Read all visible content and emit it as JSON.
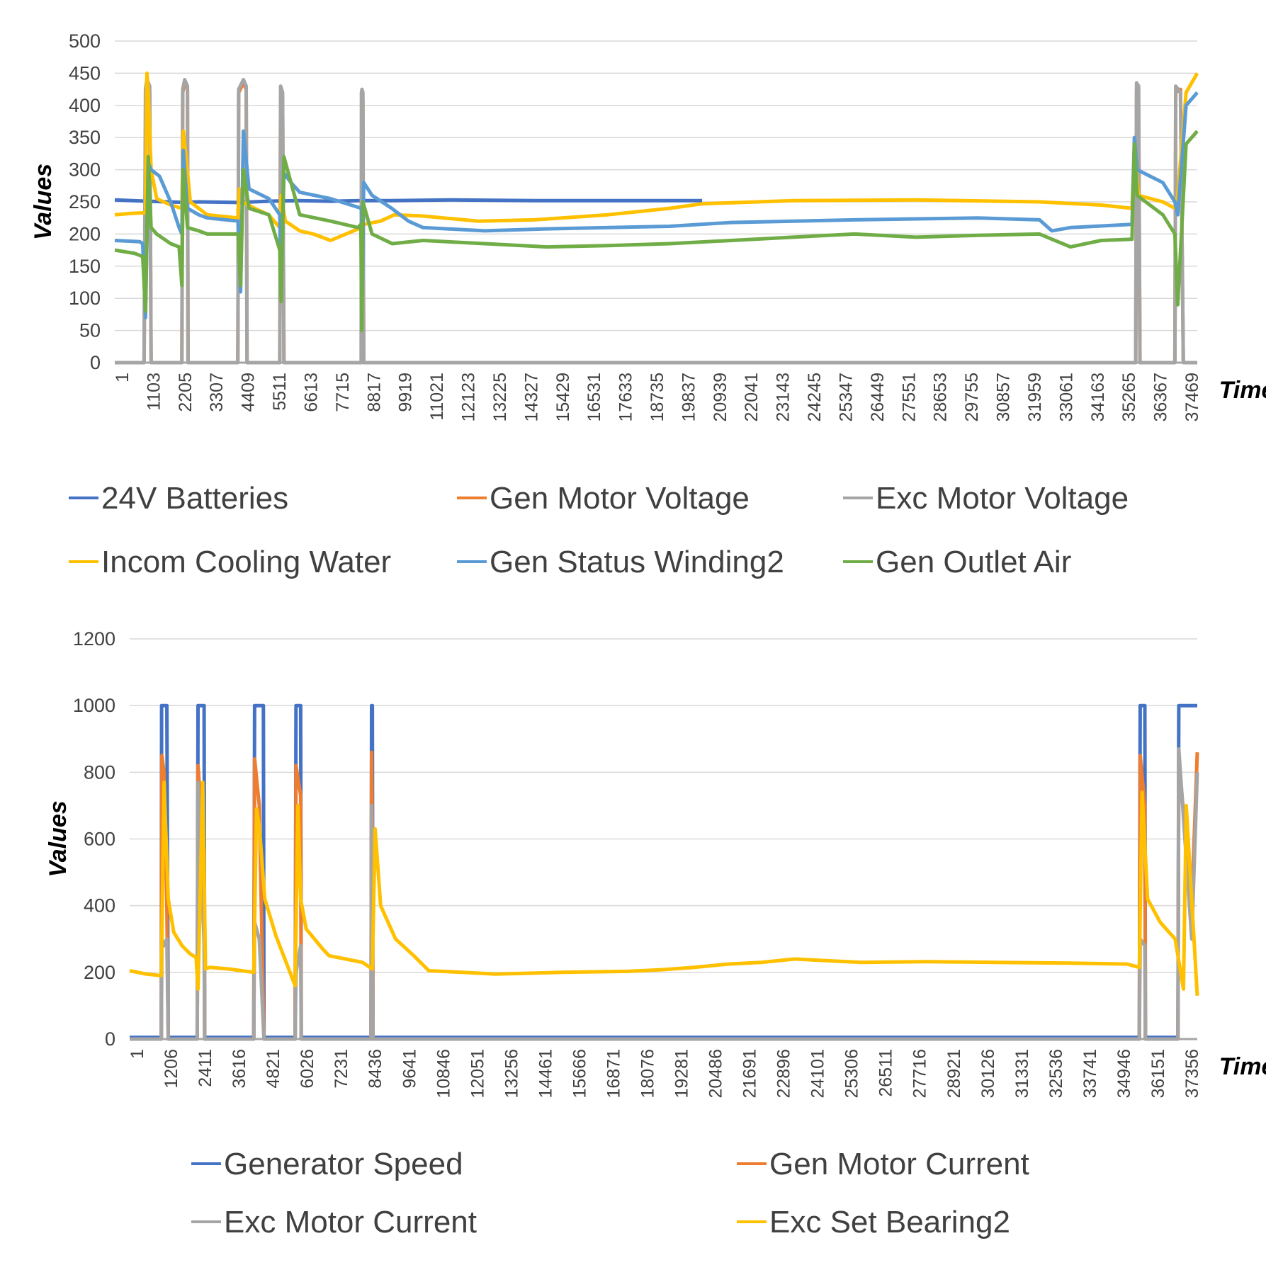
{
  "chart_data": [
    {
      "type": "line",
      "title": "",
      "xlabel": "Time",
      "ylabel": "Values",
      "ylim": [
        0,
        500
      ],
      "yticks": [
        "0",
        "50",
        "100",
        "150",
        "200",
        "250",
        "300",
        "350",
        "400",
        "450",
        "500"
      ],
      "x_tick_labels": [
        "1",
        "1103",
        "2205",
        "3307",
        "4409",
        "5511",
        "6613",
        "7715",
        "8817",
        "9919",
        "11021",
        "12123",
        "13225",
        "14327",
        "15429",
        "16531",
        "17633",
        "18735",
        "19837",
        "20939",
        "22041",
        "23143",
        "24245",
        "25347",
        "26449",
        "27551",
        "28653",
        "29755",
        "30857",
        "31959",
        "33061",
        "34163",
        "35265",
        "36367",
        "37469"
      ],
      "xlim": [
        1,
        38700
      ],
      "grid": true,
      "legend_position": "bottom",
      "series": [
        {
          "name": "24V Batteries",
          "color": "#4472C4",
          "x": [
            1,
            1200,
            1900,
            2500,
            3000,
            4400,
            5500,
            6600,
            7700,
            8800,
            9900,
            12000,
            15000,
            20000,
            20500,
            21000
          ],
          "values": [
            253,
            251,
            250,
            249,
            250,
            249,
            251,
            252,
            251,
            252,
            252,
            253,
            252,
            252,
            252,
            252
          ]
        },
        {
          "name": "Gen Motor Voltage",
          "color": "#ED7D31",
          "x": [
            1,
            1050,
            1110,
            1150,
            1250,
            1300,
            2400,
            2430,
            2500,
            2600,
            2620,
            4400,
            4430,
            4600,
            4700,
            4730,
            5900,
            5930,
            6000,
            6050,
            8820,
            8840,
            8870,
            8900,
            36500,
            36530,
            36600,
            36650,
            37900,
            37930,
            38100,
            38200
          ],
          "values": [
            0,
            0,
            420,
            440,
            420,
            0,
            0,
            420,
            435,
            425,
            0,
            0,
            420,
            435,
            425,
            0,
            0,
            420,
            410,
            0,
            0,
            415,
            410,
            0,
            0,
            425,
            430,
            0,
            0,
            420,
            425,
            0
          ]
        },
        {
          "name": "Exc Motor Voltage",
          "color": "#A5A5A5",
          "x": [
            1,
            1050,
            1100,
            1150,
            1250,
            1300,
            2400,
            2430,
            2500,
            2600,
            2620,
            4400,
            4430,
            4600,
            4700,
            4730,
            5900,
            5930,
            6000,
            6050,
            8810,
            8820,
            8840,
            8870,
            8900,
            36500,
            36530,
            36600,
            36650,
            37900,
            37930,
            38100,
            38200,
            38700
          ],
          "values": [
            0,
            0,
            425,
            440,
            430,
            0,
            0,
            425,
            440,
            430,
            0,
            0,
            425,
            440,
            430,
            0,
            0,
            430,
            420,
            0,
            0,
            420,
            425,
            420,
            0,
            0,
            435,
            430,
            0,
            0,
            430,
            420,
            0,
            0
          ]
        },
        {
          "name": "Incom Cooling Water",
          "color": "#FFC000",
          "x": [
            1,
            600,
            1100,
            1150,
            1200,
            1300,
            1500,
            2000,
            2400,
            2450,
            2550,
            2700,
            3300,
            4400,
            4450,
            4550,
            5000,
            5500,
            5900,
            5950,
            6100,
            6613,
            7100,
            7715,
            8817,
            8900,
            9500,
            10000,
            11021,
            13000,
            15000,
            17633,
            19837,
            21000,
            24245,
            28653,
            33061,
            35265,
            36367,
            36450,
            36600,
            37469,
            37900,
            38000,
            38300,
            38700
          ],
          "values": [
            230,
            232,
            233,
            450,
            420,
            300,
            255,
            245,
            240,
            360,
            320,
            250,
            230,
            225,
            270,
            250,
            240,
            230,
            210,
            260,
            220,
            205,
            200,
            190,
            210,
            215,
            220,
            230,
            228,
            220,
            222,
            230,
            240,
            247,
            252,
            253,
            250,
            245,
            240,
            330,
            260,
            250,
            240,
            260,
            420,
            450
          ]
        },
        {
          "name": "Gen Status Winding2",
          "color": "#5B9BD5",
          "x": [
            1,
            900,
            1000,
            1100,
            1200,
            1300,
            1600,
            2000,
            2300,
            2400,
            2450,
            2600,
            3000,
            3307,
            4409,
            4500,
            4600,
            4800,
            5511,
            5900,
            5950,
            6050,
            6300,
            6613,
            7715,
            8817,
            8850,
            8900,
            9200,
            9900,
            10500,
            11021,
            13225,
            15429,
            19837,
            22041,
            26449,
            30857,
            33061,
            33500,
            34163,
            36367,
            36450,
            36550,
            37469,
            37900,
            38000,
            38300,
            38700
          ],
          "values": [
            190,
            188,
            185,
            70,
            310,
            300,
            290,
            250,
            210,
            200,
            330,
            240,
            230,
            225,
            220,
            110,
            360,
            270,
            255,
            230,
            110,
            295,
            280,
            265,
            255,
            240,
            110,
            280,
            260,
            240,
            220,
            210,
            205,
            208,
            212,
            218,
            222,
            225,
            222,
            205,
            210,
            215,
            350,
            300,
            280,
            250,
            230,
            400,
            420
          ]
        },
        {
          "name": "Gen Outlet Air",
          "color": "#70AD47",
          "x": [
            1,
            700,
            1000,
            1100,
            1200,
            1300,
            1500,
            2000,
            2300,
            2400,
            2450,
            2600,
            3000,
            3307,
            4409,
            4500,
            4600,
            4800,
            5511,
            5900,
            5950,
            6050,
            6613,
            7715,
            8700,
            8800,
            8830,
            8870,
            9200,
            9919,
            11021,
            13225,
            15429,
            17633,
            19837,
            22041,
            24245,
            26449,
            28653,
            30857,
            33061,
            34163,
            35265,
            36367,
            36450,
            36550,
            37469,
            37900,
            38000,
            38300,
            38700
          ],
          "values": [
            175,
            170,
            165,
            80,
            320,
            210,
            200,
            185,
            180,
            120,
            300,
            210,
            205,
            200,
            200,
            120,
            300,
            240,
            230,
            175,
            95,
            320,
            230,
            220,
            210,
            215,
            50,
            250,
            200,
            185,
            190,
            185,
            180,
            182,
            185,
            190,
            195,
            200,
            195,
            198,
            200,
            180,
            190,
            192,
            340,
            260,
            230,
            200,
            90,
            340,
            360
          ]
        }
      ]
    },
    {
      "type": "line",
      "title": "",
      "xlabel": "Time",
      "ylabel": "Values",
      "ylim": [
        0,
        1200
      ],
      "yticks": [
        "0",
        "200",
        "400",
        "600",
        "800",
        "1000",
        "1200"
      ],
      "x_tick_labels": [
        "1",
        "1206",
        "2411",
        "3616",
        "4821",
        "6026",
        "7231",
        "8436",
        "9641",
        "10846",
        "12051",
        "13256",
        "14461",
        "15666",
        "16871",
        "18076",
        "19281",
        "20486",
        "21691",
        "22896",
        "24101",
        "25306",
        "26511",
        "27716",
        "28921",
        "30126",
        "31331",
        "32536",
        "33741",
        "34946",
        "36151",
        "37356"
      ],
      "xlim": [
        1,
        38700
      ],
      "grid": true,
      "legend_position": "bottom",
      "series": [
        {
          "name": "Generator Speed",
          "color": "#4472C4",
          "x": [
            1,
            1150,
            1160,
            1250,
            1350,
            1400,
            2450,
            2480,
            2700,
            2720,
            4500,
            4530,
            4850,
            4870,
            6000,
            6030,
            6200,
            6220,
            8750,
            8770,
            8800,
            8820,
            36600,
            36630,
            36800,
            36820,
            38000,
            38030,
            38500,
            38700
          ],
          "values": [
            5,
            5,
            1000,
            1000,
            1000,
            5,
            5,
            1000,
            1000,
            5,
            5,
            1000,
            1000,
            5,
            5,
            1000,
            1000,
            5,
            5,
            1000,
            1000,
            5,
            5,
            1000,
            1000,
            5,
            5,
            1000,
            1000,
            1000
          ]
        },
        {
          "name": "Gen Motor Current",
          "color": "#ED7D31",
          "x": [
            1,
            1150,
            1170,
            1250,
            1350,
            1400,
            2450,
            2480,
            2700,
            2720,
            4500,
            4530,
            4700,
            4870,
            6000,
            6030,
            6200,
            6220,
            8750,
            8770,
            8800,
            8820,
            36600,
            36630,
            36800,
            36820,
            38000,
            38030,
            38500,
            38700
          ],
          "values": [
            0,
            0,
            850,
            800,
            400,
            0,
            0,
            820,
            560,
            0,
            0,
            840,
            700,
            0,
            0,
            820,
            730,
            0,
            0,
            860,
            600,
            0,
            0,
            850,
            700,
            0,
            0,
            840,
            400,
            860
          ]
        },
        {
          "name": "Exc Motor Current",
          "color": "#A5A5A5",
          "x": [
            1,
            1150,
            1170,
            1250,
            1350,
            1400,
            2450,
            2480,
            2700,
            2720,
            4500,
            4530,
            4700,
            4870,
            6000,
            6030,
            6200,
            6220,
            8750,
            8770,
            8800,
            8820,
            36600,
            36630,
            36800,
            36820,
            38000,
            38030,
            38500,
            38700
          ],
          "values": [
            0,
            0,
            300,
            280,
            300,
            0,
            0,
            770,
            290,
            0,
            0,
            350,
            300,
            0,
            0,
            200,
            280,
            0,
            0,
            700,
            200,
            0,
            0,
            300,
            280,
            0,
            0,
            870,
            300,
            800
          ]
        },
        {
          "name": "Exc Set Bearing2",
          "color": "#FFC000",
          "x": [
            1,
            600,
            1150,
            1250,
            1300,
            1400,
            1600,
            1900,
            2200,
            2411,
            2480,
            2650,
            2750,
            2900,
            3616,
            4500,
            4600,
            4700,
            4900,
            5300,
            6000,
            6100,
            6200,
            6400,
            7000,
            7231,
            8436,
            8800,
            8900,
            9100,
            9641,
            10300,
            10846,
            12051,
            13256,
            15666,
            18076,
            19281,
            20486,
            21691,
            22896,
            24101,
            25306,
            26511,
            28921,
            31331,
            33741,
            36151,
            36600,
            36700,
            36900,
            37356,
            37900,
            38000,
            38200,
            38300,
            38700
          ],
          "values": [
            205,
            195,
            190,
            770,
            650,
            420,
            320,
            280,
            255,
            245,
            150,
            770,
            210,
            215,
            210,
            200,
            690,
            640,
            420,
            310,
            160,
            700,
            420,
            330,
            270,
            250,
            230,
            210,
            630,
            400,
            300,
            250,
            205,
            200,
            195,
            200,
            203,
            208,
            215,
            225,
            230,
            240,
            235,
            230,
            232,
            230,
            228,
            225,
            215,
            740,
            420,
            350,
            300,
            250,
            150,
            700,
            130
          ]
        }
      ]
    }
  ],
  "legend1": {
    "items": [
      "24V Batteries",
      "Gen Motor Voltage",
      "Exc Motor Voltage",
      "Incom Cooling Water",
      "Gen Status Winding2",
      "Gen Outlet Air"
    ],
    "colors": [
      "#4472C4",
      "#ED7D31",
      "#A5A5A5",
      "#FFC000",
      "#5B9BD5",
      "#70AD47"
    ]
  },
  "legend2": {
    "items": [
      "Generator Speed",
      "Gen Motor Current",
      "Exc Motor Current",
      "Exc Set Bearing2"
    ],
    "colors": [
      "#4472C4",
      "#ED7D31",
      "#A5A5A5",
      "#FFC000"
    ]
  },
  "grid_color": "#D9D9D9"
}
